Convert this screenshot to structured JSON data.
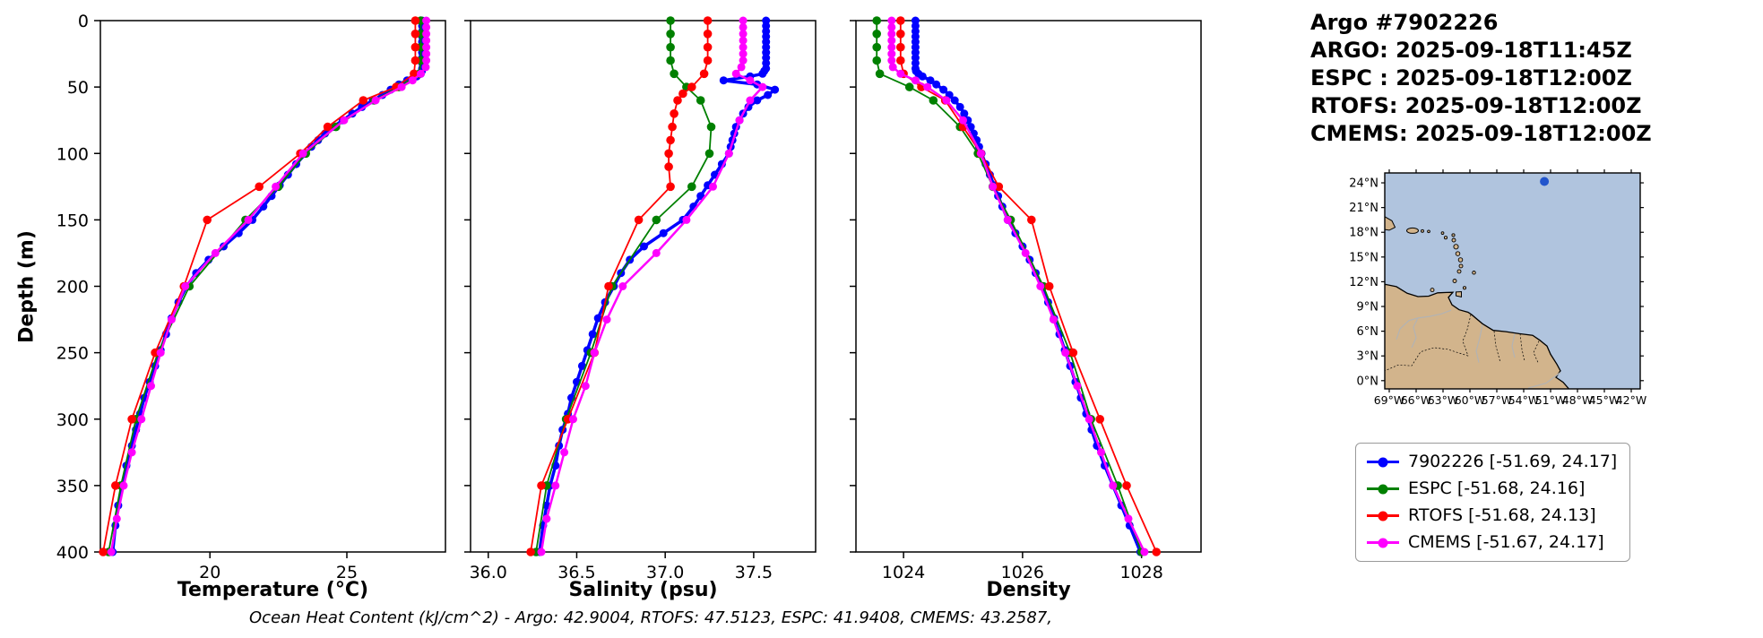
{
  "title_block": [
    "Argo #7902226",
    "ARGO: 2025-09-18T11:45Z",
    "ESPC : 2025-09-18T12:00Z",
    "RTOFS: 2025-09-18T12:00Z",
    "CMEMS: 2025-09-18T12:00Z"
  ],
  "caption": "Ocean Heat Content (kJ/cm^2) - Argo: 42.9004,  RTOFS: 47.5123,  ESPC: 41.9408,  CMEMS: 43.2587,",
  "axes": {
    "ylabel": "Depth (m)",
    "depth_ticks": [
      0,
      50,
      100,
      150,
      200,
      250,
      300,
      350,
      400
    ]
  },
  "colors": {
    "argo": "#0000ff",
    "espc": "#008000",
    "rtofs": "#ff0000",
    "cmems": "#ff00ff",
    "map_water": "#b0c4de",
    "map_land": "#d2b48c",
    "map_river": "#b3b3b3",
    "float_dot": "#2255cc"
  },
  "legend": {
    "entries": [
      {
        "id": "argo",
        "label": "7902226 [-51.69, 24.17]",
        "color": "#0000ff"
      },
      {
        "id": "espc",
        "label": "ESPC [-51.68, 24.16]",
        "color": "#008000"
      },
      {
        "id": "rtofs",
        "label": "RTOFS [-51.68, 24.13]",
        "color": "#ff0000"
      },
      {
        "id": "cmems",
        "label": "CMEMS [-51.67, 24.17]",
        "color": "#ff00ff"
      }
    ]
  },
  "map": {
    "lat_tick_values": [
      0,
      3,
      6,
      9,
      12,
      15,
      18,
      21,
      24
    ],
    "lat_tick_labels": [
      "0°N",
      "3°N",
      "6°N",
      "9°N",
      "12°N",
      "15°N",
      "18°N",
      "21°N",
      "24°N"
    ],
    "lon_tick_values": [
      69,
      66,
      63,
      60,
      57,
      54,
      51,
      48,
      45,
      42
    ],
    "lon_tick_labels": [
      "69°W",
      "66°W",
      "63°W",
      "60°W",
      "57°W",
      "54°W",
      "51°W",
      "48°W",
      "45°W",
      "42°W"
    ],
    "float": {
      "lon_w": 51.69,
      "lat_n": 24.17
    }
  },
  "chart_data": [
    {
      "type": "line",
      "panel_id": "temperature",
      "xlabel": "Temperature (°C)",
      "ylabel": "Depth (m)",
      "xlim": [
        16.0,
        28.6
      ],
      "ylim": [
        400,
        0
      ],
      "xticks": [
        20,
        25
      ],
      "xtick_labels": [
        "20",
        "25"
      ],
      "series": [
        {
          "name": "7902226",
          "color": "#0000ff",
          "lw": 3.5,
          "ms": 4.5,
          "depths": [
            0,
            4,
            8,
            12,
            16,
            20,
            24,
            28,
            32,
            36,
            38,
            40,
            42,
            45,
            48,
            52,
            56,
            60,
            65,
            70,
            75,
            80,
            85,
            90,
            95,
            100,
            108,
            116,
            124,
            132,
            140,
            150,
            160,
            170,
            180,
            190,
            200,
            212,
            224,
            236,
            248,
            260,
            272,
            284,
            296,
            308,
            320,
            335,
            350,
            365,
            380,
            400
          ],
          "values": [
            27.75,
            27.75,
            27.75,
            27.75,
            27.75,
            27.75,
            27.75,
            27.75,
            27.75,
            27.75,
            27.74,
            27.7,
            27.55,
            27.2,
            26.9,
            26.6,
            26.3,
            25.95,
            25.55,
            25.2,
            24.85,
            24.5,
            24.2,
            23.95,
            23.7,
            23.5,
            23.15,
            22.85,
            22.55,
            22.25,
            21.95,
            21.55,
            21.05,
            20.5,
            19.95,
            19.5,
            19.15,
            18.85,
            18.6,
            18.4,
            18.2,
            18.0,
            17.8,
            17.6,
            17.45,
            17.3,
            17.15,
            16.95,
            16.8,
            16.65,
            16.55,
            16.45
          ]
        },
        {
          "name": "ESPC",
          "color": "#008000",
          "lw": 1.8,
          "ms": 4.8,
          "depths": [
            0,
            10,
            20,
            30,
            40,
            50,
            60,
            80,
            100,
            125,
            150,
            200,
            250,
            300,
            350,
            400
          ],
          "values": [
            27.7,
            27.7,
            27.7,
            27.7,
            27.65,
            26.9,
            26.0,
            24.6,
            23.5,
            22.5,
            21.3,
            19.25,
            18.1,
            17.3,
            16.75,
            16.3
          ]
        },
        {
          "name": "RTOFS",
          "color": "#ff0000",
          "lw": 1.8,
          "ms": 4.8,
          "depths": [
            0,
            10,
            20,
            30,
            40,
            50,
            60,
            80,
            100,
            125,
            150,
            200,
            250,
            300,
            350,
            400
          ],
          "values": [
            27.5,
            27.5,
            27.5,
            27.5,
            27.45,
            26.8,
            25.6,
            24.3,
            23.3,
            21.8,
            19.9,
            19.05,
            18.0,
            17.15,
            16.55,
            16.1
          ]
        },
        {
          "name": "CMEMS",
          "color": "#ff00ff",
          "lw": 2.5,
          "ms": 4.5,
          "depths": [
            0,
            5,
            10,
            15,
            20,
            25,
            30,
            35,
            40,
            45,
            50,
            60,
            75,
            100,
            125,
            150,
            175,
            200,
            225,
            250,
            275,
            300,
            325,
            350,
            375,
            400
          ],
          "values": [
            27.9,
            27.9,
            27.9,
            27.9,
            27.9,
            27.9,
            27.9,
            27.88,
            27.7,
            27.4,
            27.0,
            26.05,
            24.9,
            23.4,
            22.4,
            21.4,
            20.2,
            19.1,
            18.6,
            18.2,
            17.85,
            17.5,
            17.15,
            16.85,
            16.6,
            16.4
          ]
        }
      ]
    },
    {
      "type": "line",
      "panel_id": "salinity",
      "xlabel": "Salinity (psu)",
      "ylabel": "Depth (m)",
      "xlim": [
        35.9,
        37.85
      ],
      "ylim": [
        400,
        0
      ],
      "xticks": [
        36.0,
        36.5,
        37.0,
        37.5
      ],
      "xtick_labels": [
        "36.0",
        "36.5",
        "37.0",
        "37.5"
      ],
      "series": [
        {
          "name": "7902226",
          "color": "#0000ff",
          "lw": 3.5,
          "ms": 4.5,
          "depths": [
            0,
            4,
            8,
            12,
            16,
            20,
            24,
            28,
            32,
            36,
            38,
            40,
            42,
            45,
            48,
            52,
            56,
            60,
            65,
            70,
            75,
            80,
            85,
            90,
            95,
            100,
            108,
            116,
            124,
            132,
            140,
            150,
            160,
            170,
            180,
            190,
            200,
            212,
            224,
            236,
            248,
            260,
            272,
            284,
            296,
            308,
            320,
            335,
            350,
            365,
            380,
            400
          ],
          "values": [
            37.57,
            37.57,
            37.57,
            37.57,
            37.57,
            37.57,
            37.57,
            37.57,
            37.57,
            37.57,
            37.56,
            37.55,
            37.48,
            37.33,
            37.52,
            37.62,
            37.58,
            37.52,
            37.47,
            37.44,
            37.42,
            37.4,
            37.39,
            37.38,
            37.37,
            37.36,
            37.32,
            37.28,
            37.24,
            37.2,
            37.16,
            37.1,
            36.99,
            36.88,
            36.8,
            36.75,
            36.71,
            36.66,
            36.62,
            36.59,
            36.56,
            36.53,
            36.5,
            36.47,
            36.45,
            36.42,
            36.4,
            36.38,
            36.35,
            36.33,
            36.31,
            36.29
          ]
        },
        {
          "name": "ESPC",
          "color": "#008000",
          "lw": 1.8,
          "ms": 4.8,
          "depths": [
            0,
            10,
            20,
            30,
            40,
            50,
            60,
            80,
            100,
            125,
            150,
            200,
            250,
            300,
            350,
            400
          ],
          "values": [
            37.03,
            37.03,
            37.03,
            37.03,
            37.05,
            37.12,
            37.2,
            37.26,
            37.25,
            37.15,
            36.95,
            36.7,
            36.58,
            36.44,
            36.33,
            36.27
          ]
        },
        {
          "name": "RTOFS",
          "color": "#ff0000",
          "lw": 1.8,
          "ms": 4.8,
          "depths": [
            0,
            10,
            20,
            30,
            40,
            50,
            55,
            60,
            70,
            80,
            90,
            100,
            110,
            125,
            150,
            200,
            250,
            300,
            350,
            400
          ],
          "values": [
            37.24,
            37.24,
            37.24,
            37.24,
            37.22,
            37.15,
            37.1,
            37.07,
            37.05,
            37.04,
            37.03,
            37.02,
            37.02,
            37.03,
            36.85,
            36.68,
            36.6,
            36.45,
            36.3,
            36.24
          ]
        },
        {
          "name": "CMEMS",
          "color": "#ff00ff",
          "lw": 2.5,
          "ms": 4.5,
          "depths": [
            0,
            5,
            10,
            15,
            20,
            25,
            30,
            35,
            40,
            45,
            50,
            60,
            75,
            100,
            125,
            150,
            175,
            200,
            225,
            250,
            275,
            300,
            325,
            350,
            375,
            400
          ],
          "values": [
            37.44,
            37.44,
            37.44,
            37.44,
            37.44,
            37.44,
            37.44,
            37.43,
            37.4,
            37.48,
            37.55,
            37.48,
            37.42,
            37.36,
            37.27,
            37.12,
            36.95,
            36.76,
            36.67,
            36.6,
            36.55,
            36.48,
            36.43,
            36.38,
            36.33,
            36.3
          ]
        }
      ]
    },
    {
      "type": "line",
      "panel_id": "density",
      "xlabel": "Density",
      "ylabel": "Depth (m)",
      "xlim": [
        1023.2,
        1029.0
      ],
      "ylim": [
        400,
        0
      ],
      "xticks": [
        1024,
        1026,
        1028
      ],
      "xtick_labels": [
        "1024",
        "1026",
        "1028"
      ],
      "series": [
        {
          "name": "7902226",
          "color": "#0000ff",
          "lw": 3.5,
          "ms": 4.5,
          "depths": [
            0,
            4,
            8,
            12,
            16,
            20,
            24,
            28,
            32,
            36,
            38,
            40,
            42,
            45,
            48,
            52,
            56,
            60,
            65,
            70,
            75,
            80,
            85,
            90,
            95,
            100,
            108,
            116,
            124,
            132,
            140,
            150,
            160,
            170,
            180,
            190,
            200,
            212,
            224,
            236,
            248,
            260,
            272,
            284,
            296,
            308,
            320,
            335,
            350,
            365,
            380,
            400
          ],
          "values": [
            1024.2,
            1024.2,
            1024.2,
            1024.2,
            1024.2,
            1024.2,
            1024.2,
            1024.2,
            1024.2,
            1024.2,
            1024.21,
            1024.25,
            1024.32,
            1024.45,
            1024.55,
            1024.67,
            1024.77,
            1024.86,
            1024.95,
            1025.02,
            1025.08,
            1025.13,
            1025.18,
            1025.23,
            1025.27,
            1025.31,
            1025.38,
            1025.45,
            1025.52,
            1025.59,
            1025.66,
            1025.75,
            1025.88,
            1026.0,
            1026.12,
            1026.22,
            1026.32,
            1026.43,
            1026.53,
            1026.62,
            1026.71,
            1026.8,
            1026.89,
            1026.98,
            1027.07,
            1027.16,
            1027.25,
            1027.38,
            1027.52,
            1027.66,
            1027.8,
            1027.98
          ]
        },
        {
          "name": "ESPC",
          "color": "#008000",
          "lw": 1.8,
          "ms": 4.8,
          "depths": [
            0,
            10,
            20,
            30,
            40,
            50,
            60,
            80,
            100,
            125,
            150,
            200,
            250,
            300,
            350,
            400
          ],
          "values": [
            1023.55,
            1023.55,
            1023.55,
            1023.55,
            1023.6,
            1024.1,
            1024.5,
            1024.95,
            1025.25,
            1025.5,
            1025.8,
            1026.35,
            1026.8,
            1027.15,
            1027.6,
            1028.0
          ]
        },
        {
          "name": "RTOFS",
          "color": "#ff0000",
          "lw": 1.8,
          "ms": 4.8,
          "depths": [
            0,
            10,
            20,
            30,
            40,
            50,
            60,
            80,
            100,
            125,
            150,
            200,
            250,
            300,
            350,
            400
          ],
          "values": [
            1023.95,
            1023.95,
            1023.95,
            1023.95,
            1024.0,
            1024.3,
            1024.7,
            1025.0,
            1025.3,
            1025.6,
            1026.15,
            1026.45,
            1026.85,
            1027.3,
            1027.75,
            1028.25
          ]
        },
        {
          "name": "CMEMS",
          "color": "#ff00ff",
          "lw": 2.5,
          "ms": 4.5,
          "depths": [
            0,
            5,
            10,
            15,
            20,
            25,
            30,
            35,
            40,
            45,
            50,
            60,
            75,
            100,
            125,
            150,
            175,
            200,
            225,
            250,
            275,
            300,
            325,
            350,
            375,
            400
          ],
          "values": [
            1023.8,
            1023.8,
            1023.8,
            1023.8,
            1023.8,
            1023.8,
            1023.8,
            1023.82,
            1023.95,
            1024.2,
            1024.4,
            1024.72,
            1025.0,
            1025.3,
            1025.5,
            1025.75,
            1026.05,
            1026.3,
            1026.52,
            1026.72,
            1026.92,
            1027.12,
            1027.32,
            1027.52,
            1027.78,
            1028.05
          ]
        }
      ]
    }
  ]
}
